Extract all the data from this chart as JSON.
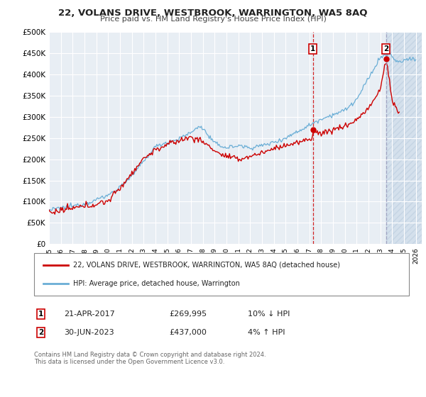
{
  "title": "22, VOLANS DRIVE, WESTBROOK, WARRINGTON, WA5 8AQ",
  "subtitle": "Price paid vs. HM Land Registry's House Price Index (HPI)",
  "ylim": [
    0,
    500000
  ],
  "yticks": [
    0,
    50000,
    100000,
    150000,
    200000,
    250000,
    300000,
    350000,
    400000,
    450000,
    500000
  ],
  "ytick_labels": [
    "£0",
    "£50K",
    "£100K",
    "£150K",
    "£200K",
    "£250K",
    "£300K",
    "£350K",
    "£400K",
    "£450K",
    "£500K"
  ],
  "xlim_start": 1995.0,
  "xlim_end": 2026.5,
  "hpi_color": "#6aaed6",
  "price_color": "#cc0000",
  "vline1_color": "#cc0000",
  "vline2_color": "#9999bb",
  "vline1_x": 2017.3,
  "vline2_x": 2023.5,
  "marker1_x": 2017.3,
  "marker1_y": 269995,
  "marker2_x": 2023.5,
  "marker2_y": 437000,
  "legend_label_price": "22, VOLANS DRIVE, WESTBROOK, WARRINGTON, WA5 8AQ (detached house)",
  "legend_label_hpi": "HPI: Average price, detached house, Warrington",
  "table_row1": [
    "1",
    "21-APR-2017",
    "£269,995",
    "10% ↓ HPI"
  ],
  "table_row2": [
    "2",
    "30-JUN-2023",
    "£437,000",
    "4% ↑ HPI"
  ],
  "footnote": "Contains HM Land Registry data © Crown copyright and database right 2024.\nThis data is licensed under the Open Government Licence v3.0.",
  "bg_color": "#e8eef4",
  "grid_color": "#ffffff",
  "future_bg": "#dde6f0"
}
